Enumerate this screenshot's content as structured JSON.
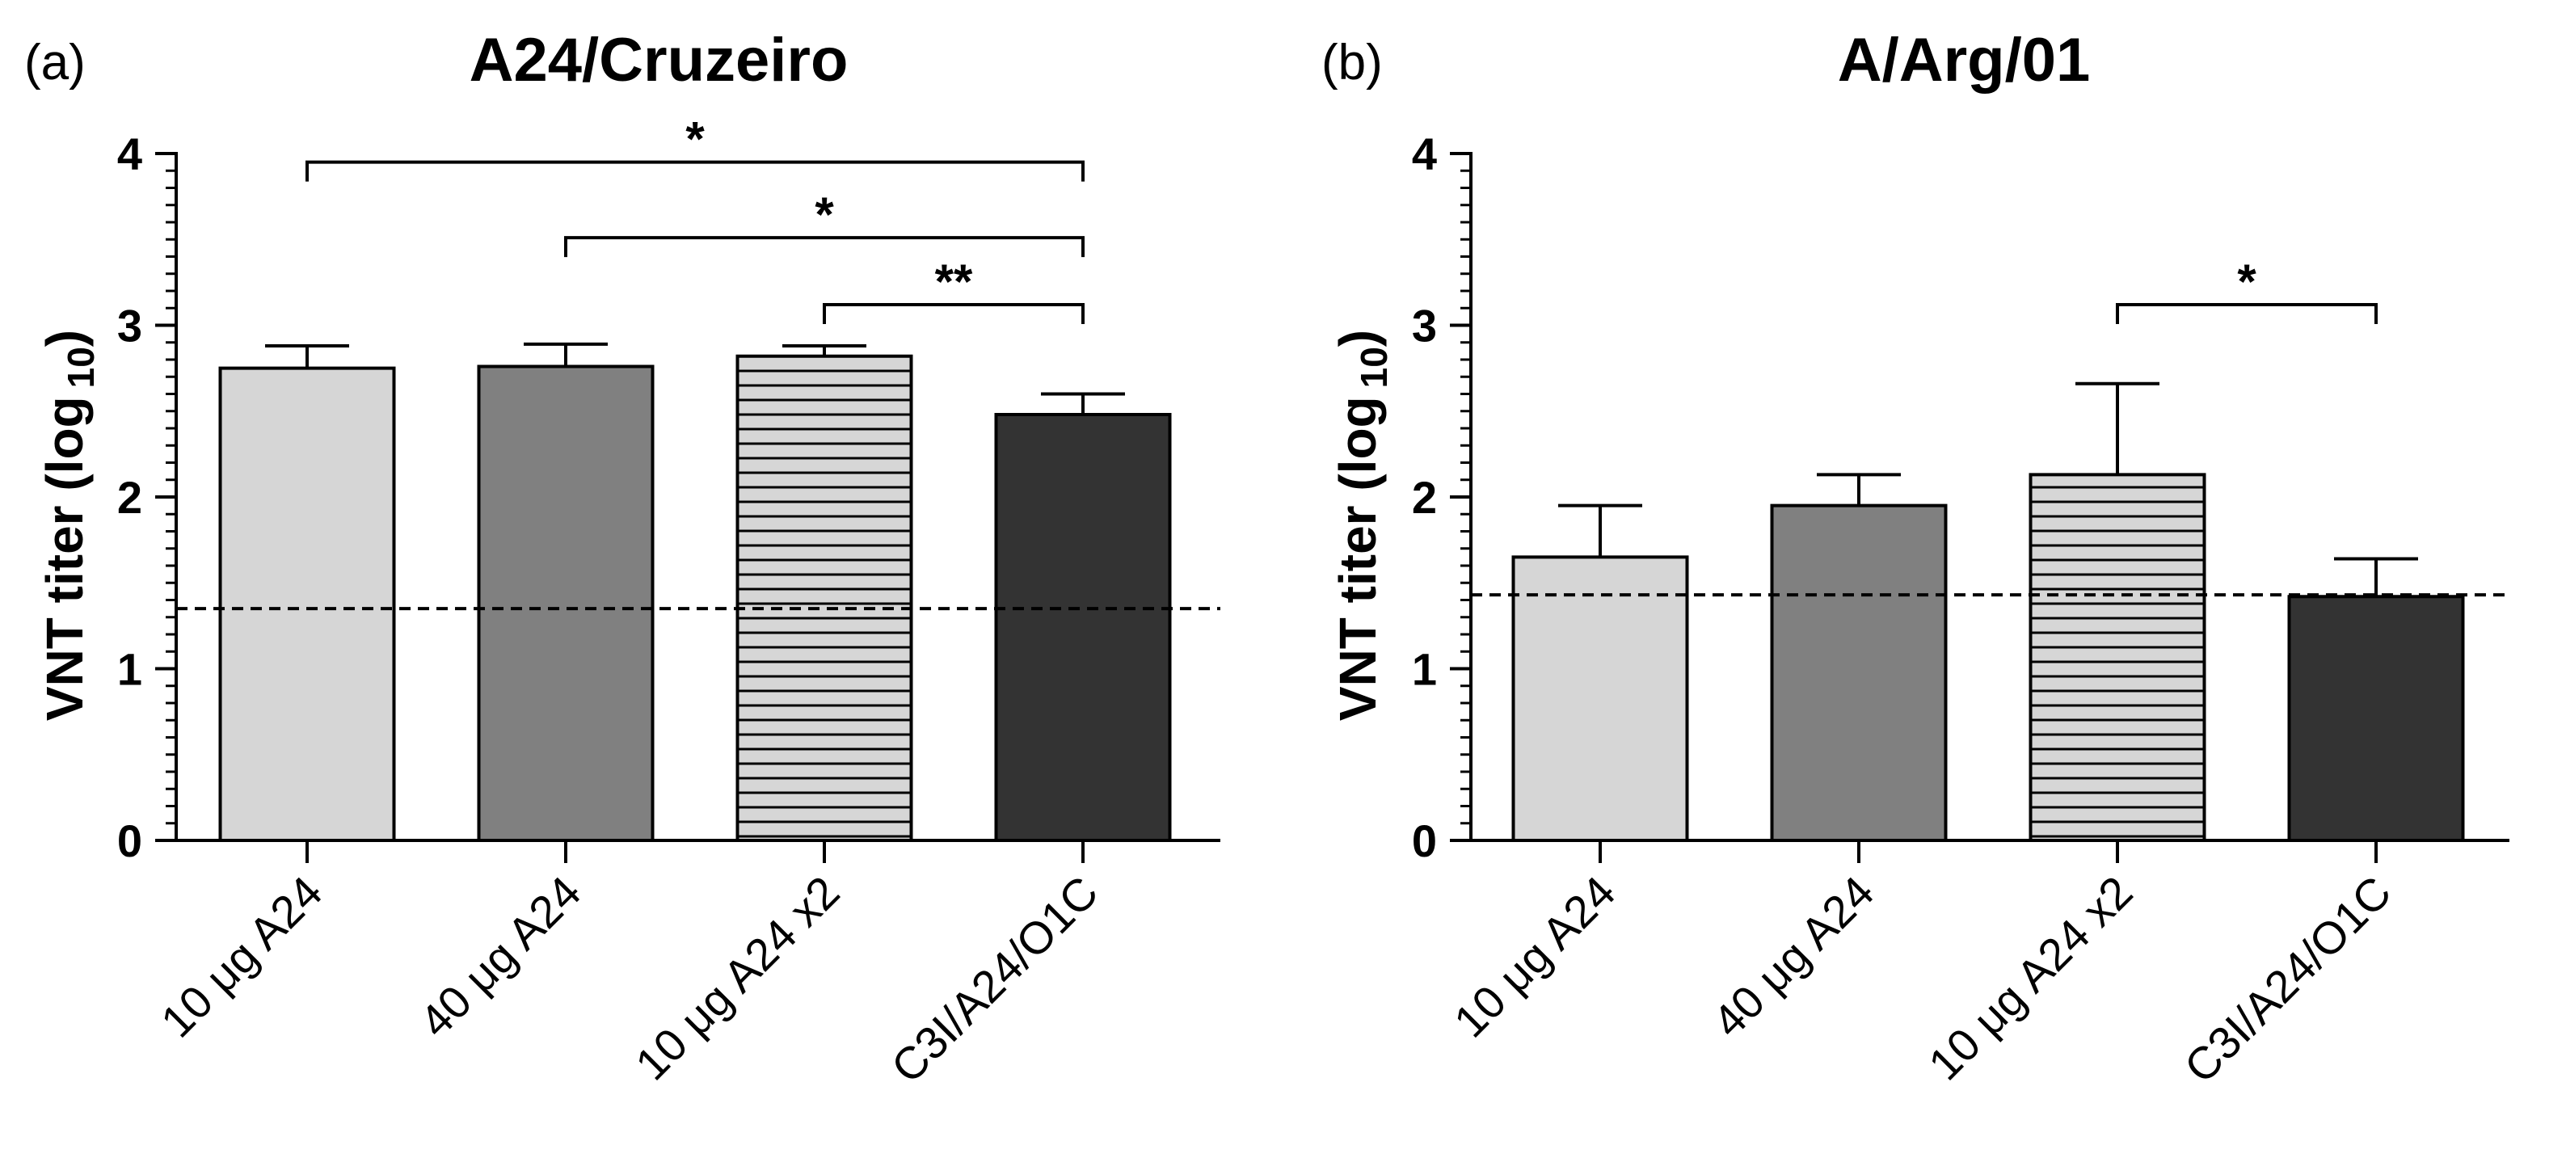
{
  "chart_data": [
    {
      "type": "bar",
      "panel_label": "(a)",
      "title": "A24/Cruzeiro",
      "ylabel": "VNT titer (log",
      "ylabel_subscript": "10",
      "ylabel_close": ")",
      "ylim": [
        0,
        4
      ],
      "yticks": [
        "0",
        "1",
        "2",
        "3",
        "4"
      ],
      "categories": [
        "10 μg A24",
        "40 μg A24",
        "10 μg A24 x2",
        "C3I/A24/O1C"
      ],
      "values": [
        2.75,
        2.76,
        2.82,
        2.48
      ],
      "errors": [
        0.13,
        0.13,
        0.06,
        0.12
      ],
      "bar_fills": [
        "#d6d6d6",
        "#808080",
        "stripes",
        "#333333"
      ],
      "threshold": 1.35,
      "significance": [
        {
          "from": 0,
          "to": 3,
          "level": 3.95,
          "label": "*"
        },
        {
          "from": 1,
          "to": 3,
          "level": 3.51,
          "label": "*"
        },
        {
          "from": 2,
          "to": 3,
          "level": 3.12,
          "label": "**"
        }
      ]
    },
    {
      "type": "bar",
      "panel_label": "(b)",
      "title": "A/Arg/01",
      "ylabel": "VNT titer (log",
      "ylabel_subscript": "10",
      "ylabel_close": ")",
      "ylim": [
        0,
        4
      ],
      "yticks": [
        "0",
        "1",
        "2",
        "3",
        "4"
      ],
      "categories": [
        "10 μg A24",
        "40 μg A24",
        "10 μg A24 x2",
        "C3I/A24/O1C"
      ],
      "values": [
        1.65,
        1.95,
        2.13,
        1.42
      ],
      "errors": [
        0.3,
        0.18,
        0.53,
        0.22
      ],
      "bar_fills": [
        "#d6d6d6",
        "#808080",
        "stripes",
        "#333333"
      ],
      "threshold": 1.43,
      "significance": [
        {
          "from": 2,
          "to": 3,
          "level": 3.12,
          "label": "*"
        }
      ]
    }
  ]
}
